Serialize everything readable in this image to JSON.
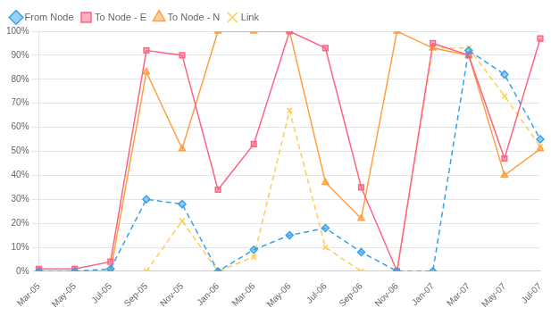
{
  "chart_data": {
    "type": "line",
    "categories": [
      "Mar-05",
      "May-05",
      "Jul-05",
      "Sep-05",
      "Nov-05",
      "Jan-06",
      "Mar-06",
      "May-06",
      "Jul-06",
      "Sep-06",
      "Nov-06",
      "Jan-07",
      "Mar-07",
      "May-07",
      "Jul-07"
    ],
    "series": [
      {
        "name": "From Node",
        "marker": "diamond",
        "line_style": "dashed",
        "values": [
          0,
          0,
          1,
          30,
          28,
          0,
          9,
          15,
          18,
          8,
          0,
          0,
          92,
          82,
          55
        ]
      },
      {
        "name": "To Node - E",
        "marker": "square",
        "line_style": "solid",
        "values": [
          1,
          1,
          4,
          92,
          90,
          34,
          53,
          100,
          93,
          35,
          0,
          95,
          90,
          47,
          97
        ]
      },
      {
        "name": "To Node - N",
        "marker": "triangle",
        "line_style": "solid",
        "values": [
          0,
          0,
          0,
          83,
          51,
          100,
          100,
          100,
          37,
          22,
          100,
          93,
          90,
          40,
          51
        ]
      },
      {
        "name": "Link",
        "marker": "x",
        "line_style": "dashed",
        "values": [
          0,
          0,
          0,
          0,
          21,
          0,
          6,
          67,
          10,
          0,
          0,
          93,
          93,
          73,
          52
        ]
      }
    ],
    "ylim": [
      0,
      100
    ],
    "yticks": [
      {
        "value": 0,
        "label": "0%"
      },
      {
        "value": 10,
        "label": "10%"
      },
      {
        "value": 20,
        "label": "20%"
      },
      {
        "value": 30,
        "label": "30%"
      },
      {
        "value": 40,
        "label": "40%"
      },
      {
        "value": 50,
        "label": "50%"
      },
      {
        "value": 60,
        "label": "60%"
      },
      {
        "value": 70,
        "label": "70%"
      },
      {
        "value": 80,
        "label": "80%"
      },
      {
        "value": 90,
        "label": "90%"
      },
      {
        "value": 100,
        "label": "100%"
      }
    ],
    "grid": "y",
    "legend": "upper left"
  }
}
